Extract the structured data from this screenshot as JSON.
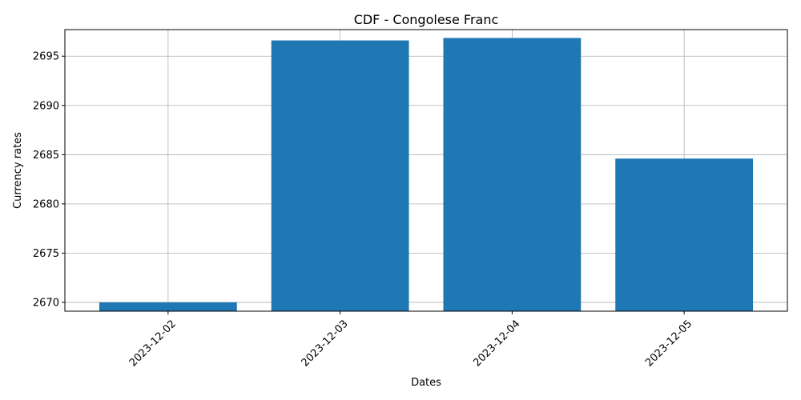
{
  "chart_data": {
    "type": "bar",
    "title": "CDF - Congolese Franc",
    "xlabel": "Dates",
    "ylabel": "Currency rates",
    "categories": [
      "2023-12-02",
      "2023-12-03",
      "2023-12-04",
      "2023-12-05"
    ],
    "values": [
      2670.0,
      2696.6,
      2696.85,
      2684.6
    ],
    "ylim": [
      2669.1,
      2697.7
    ],
    "yticks": [
      2670,
      2675,
      2680,
      2685,
      2690,
      2695
    ],
    "grid": true,
    "bar_color": "#1f77b4",
    "grid_color": "#b0b0b0"
  }
}
